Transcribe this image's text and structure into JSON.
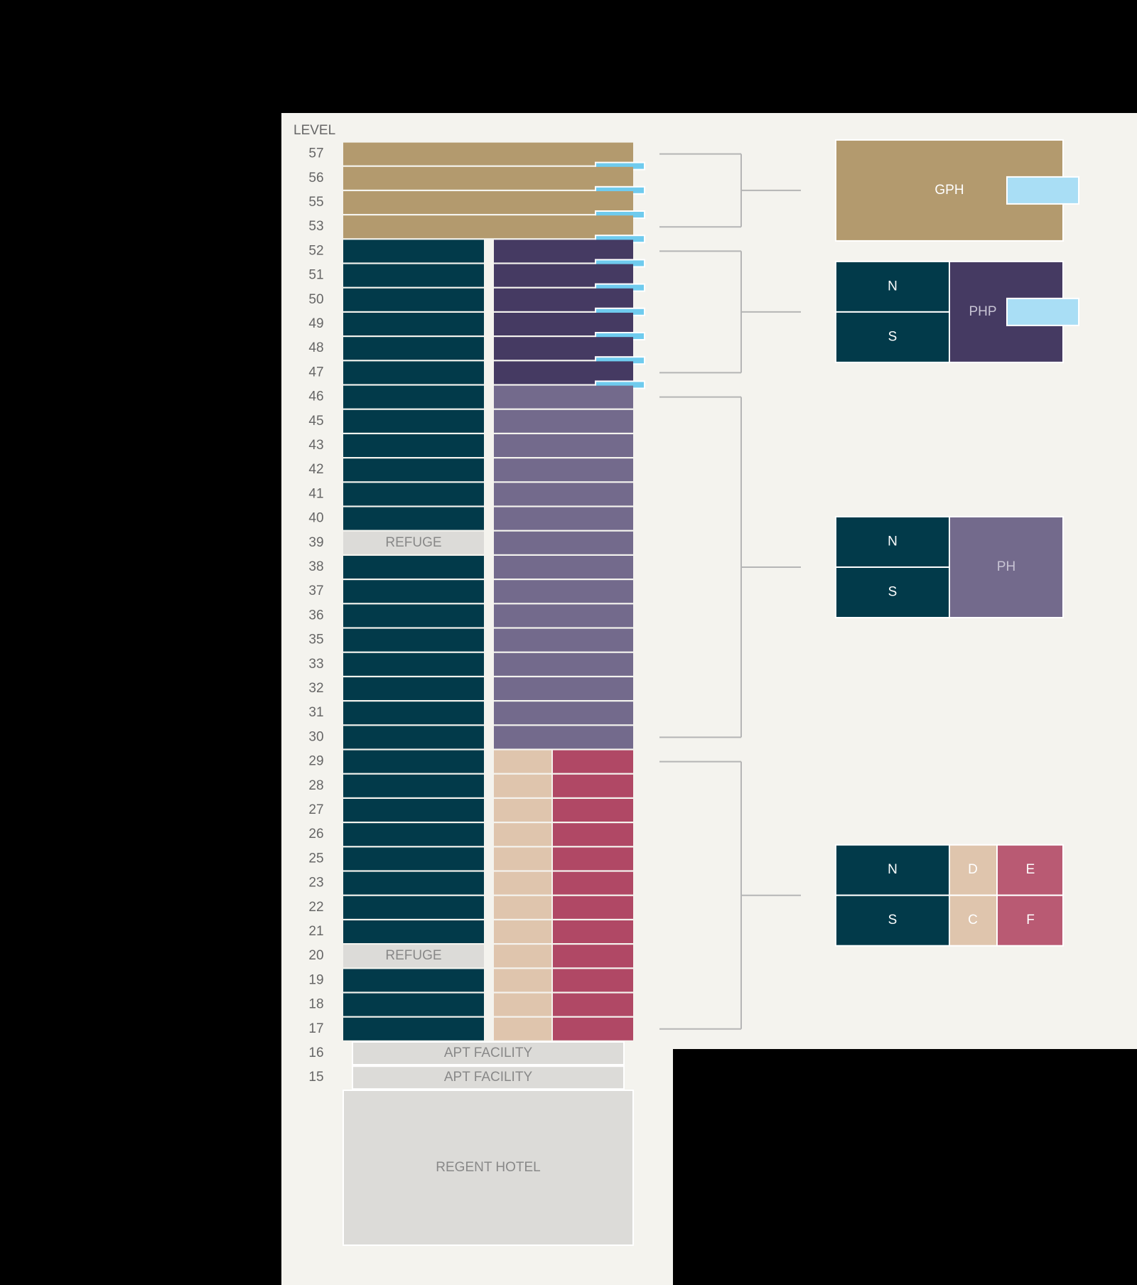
{
  "header": "LEVEL",
  "groups": [
    {
      "levels": [
        {
          "level": "57"
        },
        {
          "level": "56"
        },
        {
          "level": "55"
        },
        {
          "level": "53"
        }
      ],
      "tab": true,
      "legend": {
        "label": "GPH"
      }
    },
    {
      "levels": [
        {
          "level": "52"
        },
        {
          "level": "51"
        },
        {
          "level": "50"
        },
        {
          "level": "49"
        },
        {
          "level": "48"
        },
        {
          "level": "47"
        }
      ],
      "tab": true,
      "legend": {
        "n": "N",
        "s": "S",
        "label": "PHP"
      }
    },
    {
      "levels": [
        {
          "level": "46"
        },
        {
          "level": "45"
        },
        {
          "level": "43"
        },
        {
          "level": "42"
        },
        {
          "level": "41"
        },
        {
          "level": "40"
        },
        {
          "level": "39",
          "note": "REFUGE"
        },
        {
          "level": "38"
        },
        {
          "level": "37"
        },
        {
          "level": "36"
        },
        {
          "level": "35"
        },
        {
          "level": "33"
        },
        {
          "level": "32"
        },
        {
          "level": "31"
        },
        {
          "level": "30"
        }
      ],
      "legend": {
        "n": "N",
        "s": "S",
        "label": "PH"
      }
    },
    {
      "levels": [
        {
          "level": "29"
        },
        {
          "level": "28"
        },
        {
          "level": "27"
        },
        {
          "level": "26"
        },
        {
          "level": "25"
        },
        {
          "level": "23"
        },
        {
          "level": "22"
        },
        {
          "level": "21"
        },
        {
          "level": "20",
          "note": "REFUGE"
        },
        {
          "level": "19"
        },
        {
          "level": "18"
        },
        {
          "level": "17"
        }
      ],
      "legend": {
        "n": "N",
        "s": "S",
        "d": "D",
        "c": "C",
        "e": "E",
        "f": "F"
      }
    }
  ],
  "podium": [
    {
      "level": "16",
      "label": "APT FACILITY"
    },
    {
      "level": "15",
      "label": "APT FACILITY"
    }
  ],
  "base": "REGENT HOTEL"
}
